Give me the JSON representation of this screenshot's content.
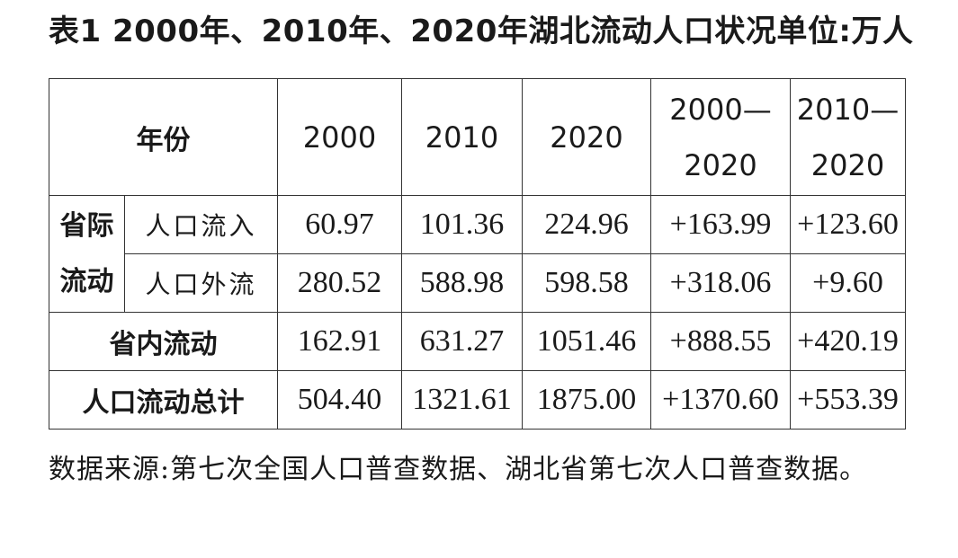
{
  "title": "表1 2000年、2010年、2020年湖北流动人口状况单位:万人",
  "table": {
    "header": {
      "year_label": "年份",
      "y2000": "2000",
      "y2010": "2010",
      "y2020": "2020",
      "range1_line1": "2000—",
      "range1_line2": "2020",
      "range2_line1": "2010—",
      "range2_line2": "2020"
    },
    "interprov_group": {
      "line1": "省际",
      "line2": "流动"
    },
    "rows": [
      {
        "label": "人口流入",
        "v2000": "60.97",
        "v2010": "101.36",
        "v2020": "224.96",
        "d1": "+163.99",
        "d2": "+123.60"
      },
      {
        "label": "人口外流",
        "v2000": "280.52",
        "v2010": "588.98",
        "v2020": "598.58",
        "d1": "+318.06",
        "d2": "+9.60"
      },
      {
        "label": "省内流动",
        "v2000": "162.91",
        "v2010": "631.27",
        "v2020": "1051.46",
        "d1": "+888.55",
        "d2": "+420.19"
      },
      {
        "label": "人口流动总计",
        "v2000": "504.40",
        "v2010": "1321.61",
        "v2020": "1875.00",
        "d1": "+1370.60",
        "d2": "+553.39"
      }
    ]
  },
  "source_note": "数据来源:第七次全国人口普查数据、湖北省第七次人口普查数据。"
}
